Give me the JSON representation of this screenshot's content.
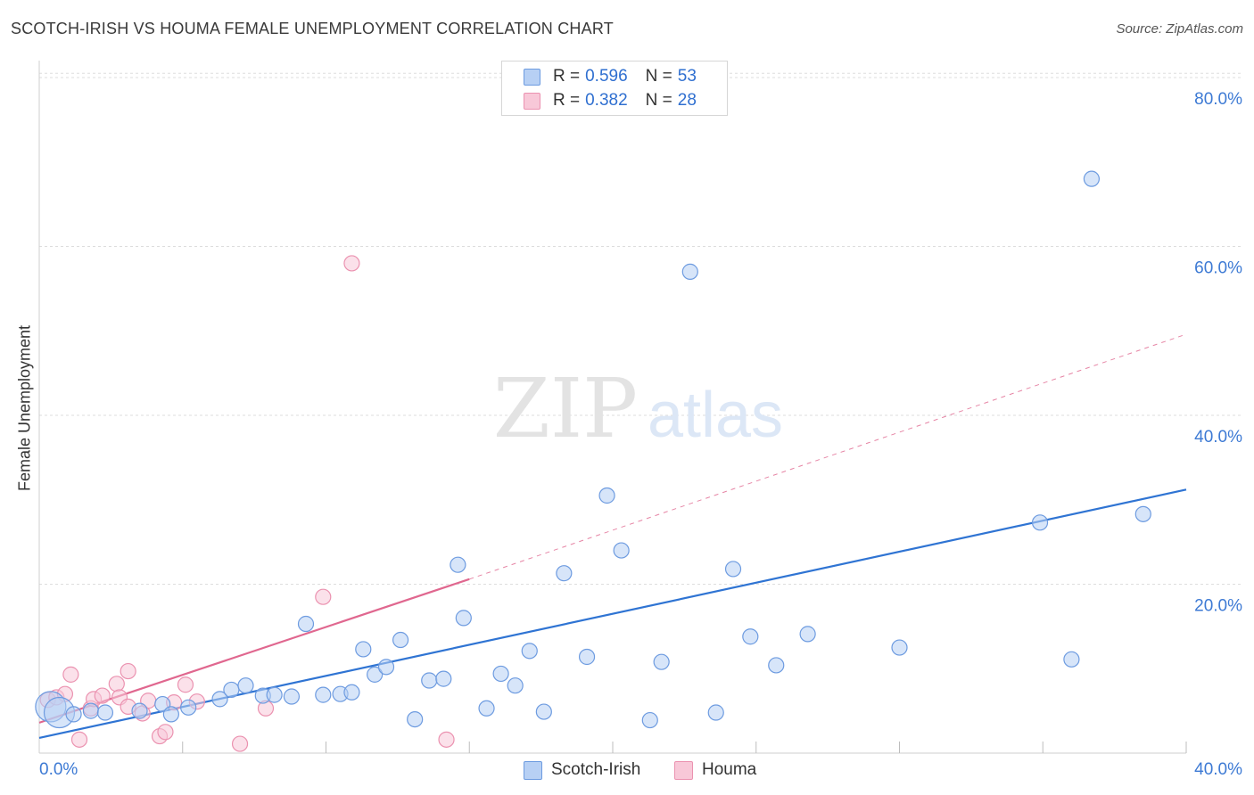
{
  "title": "SCOTCH-IRISH VS HOUMA FEMALE UNEMPLOYMENT CORRELATION CHART",
  "source": "Source: ZipAtlas.com",
  "watermark": {
    "zip": "ZIP",
    "atlas": "atlas"
  },
  "legend": {
    "scotch": {
      "r_label": "R = ",
      "r_value": "0.596",
      "n_label": "N = ",
      "n_value": "53"
    },
    "houma": {
      "r_label": "R = ",
      "r_value": "0.382",
      "n_label": "N = ",
      "n_value": "28"
    }
  },
  "bottom_legend": {
    "scotch": "Scotch-Irish",
    "houma": "Houma"
  },
  "colors": {
    "blue": "#6d9be0",
    "blue_fill": "#b7d0f4",
    "blue_line": "#2f74d3",
    "pink": "#eb92b0",
    "pink_fill": "#f8c8d8",
    "pink_line": "#e0678f",
    "tick_label": "#3d7ad4",
    "grid": "#dddddd"
  },
  "chart_data": {
    "type": "scatter",
    "title": "SCOTCH-IRISH VS HOUMA FEMALE UNEMPLOYMENT CORRELATION CHART",
    "xlabel": "",
    "ylabel": "Female Unemployment",
    "xlim": [
      0,
      40
    ],
    "ylim": [
      0,
      82
    ],
    "x_tick_labels": [
      "0.0%",
      "40.0%"
    ],
    "y_ticks": [
      20,
      40,
      60,
      80
    ],
    "y_tick_labels": [
      "20.0%",
      "40.0%",
      "60.0%",
      "80.0%"
    ],
    "grid": true,
    "series": [
      {
        "name": "Scotch-Irish",
        "r": 0.596,
        "n": 53,
        "trend": {
          "x0": 0,
          "y0": 1.8,
          "x1": 40,
          "y1": 31.2
        },
        "points": [
          [
            0.4,
            5.5,
            "large"
          ],
          [
            0.7,
            4.8,
            "large"
          ],
          [
            1.2,
            4.6
          ],
          [
            1.8,
            5.0
          ],
          [
            2.3,
            4.8
          ],
          [
            3.5,
            5.0
          ],
          [
            4.3,
            5.8
          ],
          [
            4.6,
            4.6
          ],
          [
            5.2,
            5.4
          ],
          [
            6.3,
            6.4
          ],
          [
            6.7,
            7.5
          ],
          [
            7.2,
            8.0
          ],
          [
            7.8,
            6.8
          ],
          [
            8.2,
            6.9
          ],
          [
            8.8,
            6.7
          ],
          [
            9.3,
            15.3
          ],
          [
            9.9,
            6.9
          ],
          [
            10.5,
            7.0
          ],
          [
            10.9,
            7.2
          ],
          [
            11.3,
            12.3
          ],
          [
            11.7,
            9.3
          ],
          [
            12.1,
            10.2
          ],
          [
            12.6,
            13.4
          ],
          [
            13.1,
            4.0
          ],
          [
            13.6,
            8.6
          ],
          [
            14.1,
            8.8
          ],
          [
            14.6,
            22.3
          ],
          [
            14.8,
            16.0
          ],
          [
            15.6,
            5.3
          ],
          [
            16.1,
            9.4
          ],
          [
            16.6,
            8.0
          ],
          [
            17.1,
            12.1
          ],
          [
            17.6,
            4.9
          ],
          [
            18.3,
            21.3
          ],
          [
            19.1,
            11.4
          ],
          [
            19.8,
            30.5
          ],
          [
            20.3,
            24.0
          ],
          [
            21.3,
            3.9
          ],
          [
            21.7,
            10.8
          ],
          [
            22.7,
            57.0
          ],
          [
            23.6,
            4.8
          ],
          [
            24.2,
            21.8
          ],
          [
            24.8,
            13.8
          ],
          [
            25.7,
            10.4
          ],
          [
            26.8,
            14.1
          ],
          [
            30.0,
            12.5
          ],
          [
            34.9,
            27.3
          ],
          [
            36.0,
            11.1
          ],
          [
            36.7,
            68.0
          ],
          [
            38.5,
            28.3
          ]
        ]
      },
      {
        "name": "Houma",
        "r": 0.382,
        "n": 28,
        "trend": {
          "x0": 0,
          "y0": 3.6,
          "x1": 15.0,
          "y1": 20.6,
          "x_ext": 40,
          "y_ext": 49.6
        },
        "points": [
          [
            0.3,
            6.3
          ],
          [
            0.6,
            6.6
          ],
          [
            0.9,
            7.0
          ],
          [
            1.1,
            9.3
          ],
          [
            1.4,
            1.6
          ],
          [
            1.8,
            5.3
          ],
          [
            1.9,
            6.4
          ],
          [
            2.2,
            6.8
          ],
          [
            2.7,
            8.2
          ],
          [
            2.8,
            6.6
          ],
          [
            3.1,
            9.7
          ],
          [
            3.1,
            5.5
          ],
          [
            3.6,
            4.7
          ],
          [
            3.8,
            6.2
          ],
          [
            4.2,
            2.0
          ],
          [
            4.4,
            2.5
          ],
          [
            4.7,
            6.0
          ],
          [
            5.1,
            8.1
          ],
          [
            5.5,
            6.1
          ],
          [
            7.0,
            1.1
          ],
          [
            7.9,
            5.3
          ],
          [
            9.9,
            18.5
          ],
          [
            10.9,
            58.0
          ],
          [
            14.2,
            1.6
          ]
        ]
      }
    ]
  }
}
